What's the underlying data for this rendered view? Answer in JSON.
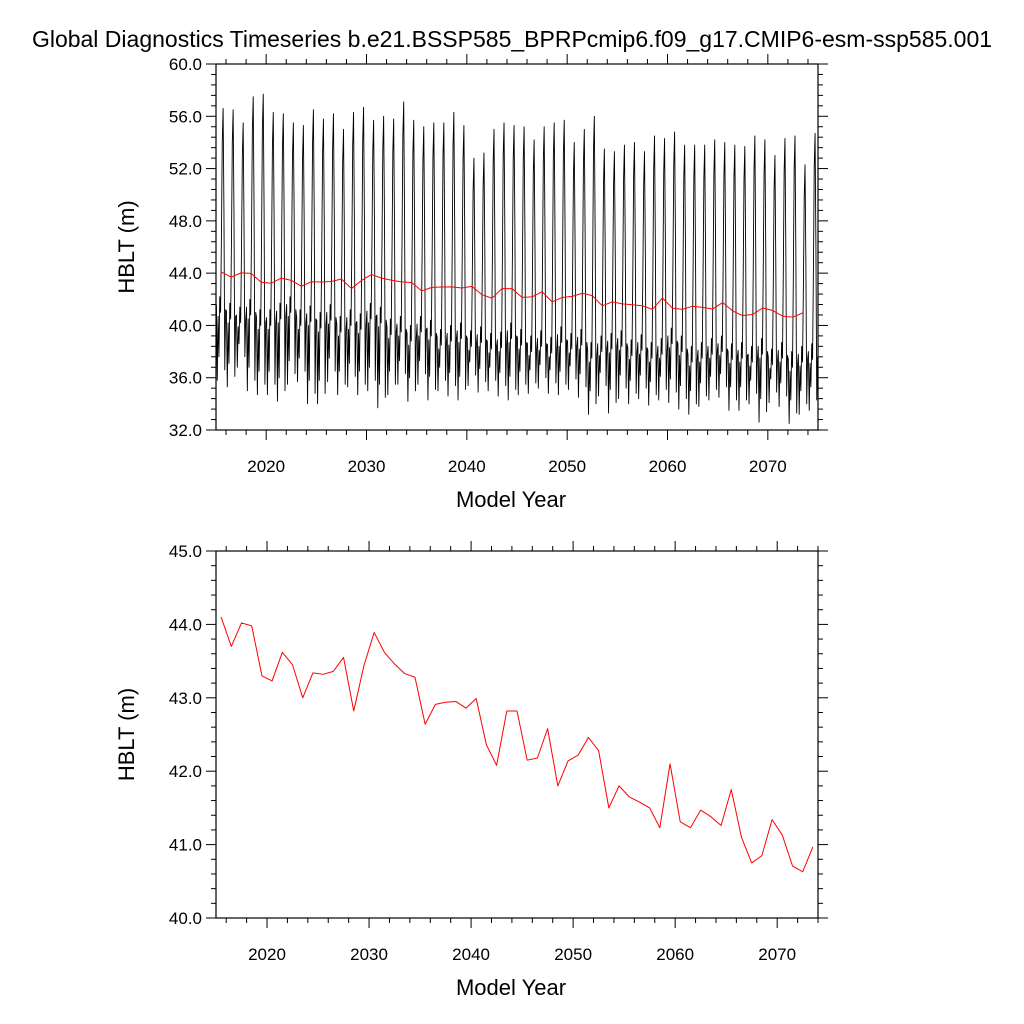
{
  "title": "Global Diagnostics Timeseries b.e21.BSSP585_BPRPcmip6.f09_g17.CMIP6-esm-ssp585.001",
  "colors": {
    "monthly": "#000000",
    "annual": "#ff0000",
    "axes": "#000000"
  },
  "chart_data": [
    {
      "type": "line",
      "xlabel": "Model Year",
      "ylabel": "HBLT (m)",
      "xlim": [
        2015.0,
        2075.0
      ],
      "ylim": [
        32.0,
        60.0
      ],
      "xticks": [
        2020,
        2030,
        2040,
        2050,
        2060,
        2070
      ],
      "xtick_labels": [
        "2020",
        "2030",
        "2040",
        "2050",
        "2060",
        "2070"
      ],
      "yticks": [
        32,
        36,
        40,
        44,
        48,
        52,
        56,
        60
      ],
      "ytick_labels": [
        "32.0",
        "36.0",
        "40.0",
        "44.0",
        "48.0",
        "52.0",
        "56.0",
        "60.0"
      ],
      "series": [
        {
          "color": "#000000",
          "kind": "monthly",
          "annual_peak": [
            56.6,
            56.5,
            55.5,
            57.5,
            57.7,
            56.3,
            56.2,
            55.5,
            55.3,
            56.5,
            55.8,
            56.2,
            55.0,
            56.3,
            56.7,
            55.7,
            56.0,
            55.8,
            57.1,
            55.7,
            55.2,
            55.5,
            55.5,
            56.3,
            55.3,
            52.8,
            53.2,
            55.0,
            55.5,
            55.3,
            55.2,
            54.2,
            55.2,
            55.5,
            55.7,
            54.0,
            55.0,
            56.0,
            53.5,
            53.3,
            53.8,
            54.0,
            53.3,
            54.5,
            54.3,
            54.8,
            53.8,
            53.8,
            53.8,
            54.2,
            54.0,
            53.8,
            53.7,
            54.5,
            54.2,
            53.0,
            54.3,
            54.5,
            52.3,
            54.7
          ],
          "annual_trough": [
            35.8,
            35.3,
            36.8,
            35.0,
            34.7,
            34.7,
            34.2,
            35.5,
            35.7,
            34.0,
            34.0,
            35.7,
            34.7,
            35.3,
            34.7,
            35.0,
            33.7,
            34.7,
            35.5,
            34.2,
            35.5,
            34.3,
            35.0,
            34.6,
            34.3,
            35.4,
            34.9,
            35.0,
            34.6,
            34.3,
            34.7,
            34.8,
            35.2,
            34.8,
            34.7,
            35.1,
            34.5,
            33.2,
            34.6,
            33.3,
            34.4,
            34.0,
            34.4,
            33.9,
            34.3,
            34.1,
            33.6,
            33.2,
            33.8,
            34.3,
            34.5,
            33.5,
            33.5,
            34.0,
            32.6,
            34.1,
            33.8,
            32.5,
            33.2,
            33.5
          ],
          "annual_secondary": [
            41.0,
            40.5,
            40.2,
            40.8,
            40.0,
            40.0,
            40.5,
            41.0,
            40.0,
            40.3,
            39.8,
            40.4,
            39.5,
            40.0,
            39.7,
            40.5,
            40.2,
            39.3,
            39.5,
            38.8,
            39.5,
            39.2,
            38.5,
            38.8,
            39.0,
            38.4,
            38.7,
            38.2,
            38.3,
            39.0,
            38.5,
            38.0,
            38.4,
            37.9,
            38.7,
            38.2,
            38.5,
            37.5,
            38.0,
            38.2,
            38.4,
            37.7,
            38.1,
            37.5,
            37.8,
            38.6,
            38.0,
            37.2,
            37.5,
            37.8,
            38.0,
            37.4,
            37.5,
            37.2,
            37.8,
            37.0,
            37.5,
            36.8,
            37.2,
            37.4
          ]
        },
        {
          "color": "#ff0000",
          "kind": "annual",
          "x": [
            2015.5,
            2016.5,
            2017.5,
            2018.5,
            2019.5,
            2020.5,
            2021.5,
            2022.5,
            2023.5,
            2024.5,
            2025.5,
            2026.5,
            2027.5,
            2028.5,
            2029.5,
            2030.5,
            2031.5,
            2032.5,
            2033.5,
            2034.5,
            2035.5,
            2036.5,
            2037.5,
            2038.5,
            2039.5,
            2040.5,
            2041.5,
            2042.5,
            2043.5,
            2044.5,
            2045.5,
            2046.5,
            2047.5,
            2048.5,
            2049.5,
            2050.5,
            2051.5,
            2052.5,
            2053.5,
            2054.5,
            2055.5,
            2056.5,
            2057.5,
            2058.5,
            2059.5,
            2060.5,
            2061.5,
            2062.5,
            2063.5,
            2064.5,
            2065.5,
            2066.5,
            2067.5,
            2068.5,
            2069.5,
            2070.5,
            2071.5,
            2072.5,
            2073.5
          ],
          "values": [
            44.1,
            43.7,
            44.02,
            43.98,
            43.3,
            43.23,
            43.62,
            43.45,
            43.0,
            43.34,
            43.32,
            43.36,
            43.55,
            42.82,
            43.44,
            43.89,
            43.62,
            43.46,
            43.33,
            43.28,
            42.64,
            42.91,
            42.94,
            42.95,
            42.86,
            42.99,
            42.36,
            42.08,
            42.82,
            42.82,
            42.15,
            42.18,
            42.58,
            41.8,
            42.14,
            42.22,
            42.46,
            42.28,
            41.5,
            41.8,
            41.65,
            41.58,
            41.5,
            41.23,
            42.1,
            41.31,
            41.23,
            41.47,
            41.38,
            41.26,
            41.75,
            41.1,
            40.75,
            40.85,
            41.34,
            41.13,
            40.71,
            40.63,
            40.97
          ]
        }
      ]
    },
    {
      "type": "line",
      "xlabel": "Model Year",
      "ylabel": "HBLT (m)",
      "xlim": [
        2015.0,
        2074.0
      ],
      "ylim": [
        40.0,
        45.0
      ],
      "xticks": [
        2020,
        2030,
        2040,
        2050,
        2060,
        2070
      ],
      "xtick_labels": [
        "2020",
        "2030",
        "2040",
        "2050",
        "2060",
        "2070"
      ],
      "yticks": [
        40,
        41,
        42,
        43,
        44,
        45
      ],
      "ytick_labels": [
        "40.0",
        "41.0",
        "42.0",
        "43.0",
        "44.0",
        "45.0"
      ],
      "series": [
        {
          "color": "#ff0000",
          "kind": "annual",
          "x": [
            2015.5,
            2016.5,
            2017.5,
            2018.5,
            2019.5,
            2020.5,
            2021.5,
            2022.5,
            2023.5,
            2024.5,
            2025.5,
            2026.5,
            2027.5,
            2028.5,
            2029.5,
            2030.5,
            2031.5,
            2032.5,
            2033.5,
            2034.5,
            2035.5,
            2036.5,
            2037.5,
            2038.5,
            2039.5,
            2040.5,
            2041.5,
            2042.5,
            2043.5,
            2044.5,
            2045.5,
            2046.5,
            2047.5,
            2048.5,
            2049.5,
            2050.5,
            2051.5,
            2052.5,
            2053.5,
            2054.5,
            2055.5,
            2056.5,
            2057.5,
            2058.5,
            2059.5,
            2060.5,
            2061.5,
            2062.5,
            2063.5,
            2064.5,
            2065.5,
            2066.5,
            2067.5,
            2068.5,
            2069.5,
            2070.5,
            2071.5,
            2072.5,
            2073.5
          ],
          "values": [
            44.1,
            43.7,
            44.02,
            43.98,
            43.3,
            43.23,
            43.62,
            43.45,
            43.0,
            43.34,
            43.32,
            43.36,
            43.55,
            42.82,
            43.44,
            43.89,
            43.62,
            43.46,
            43.33,
            43.28,
            42.64,
            42.91,
            42.94,
            42.95,
            42.86,
            42.99,
            42.36,
            42.08,
            42.82,
            42.82,
            42.15,
            42.18,
            42.58,
            41.8,
            42.14,
            42.22,
            42.46,
            42.28,
            41.5,
            41.8,
            41.65,
            41.58,
            41.5,
            41.23,
            42.1,
            41.31,
            41.23,
            41.47,
            41.38,
            41.26,
            41.75,
            41.1,
            40.75,
            40.85,
            41.34,
            41.13,
            40.71,
            40.63,
            40.97
          ]
        }
      ]
    }
  ]
}
